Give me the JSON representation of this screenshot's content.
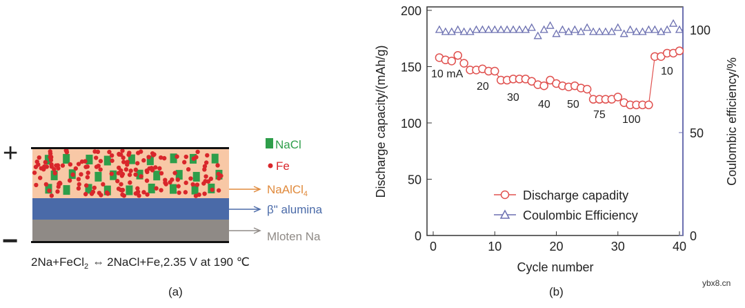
{
  "panel_a": {
    "label": "(a)",
    "plus_sign": "+",
    "minus_sign": "−",
    "legend": {
      "nacl": "NaCl",
      "fe": "Fe",
      "naalcl4": "NaAlCl",
      "naalcl4_sub": "4",
      "beta_alumina": "β\" alumina",
      "molten_na": "Mloten Na"
    },
    "equation_left": "2Na+FeCl",
    "equation_sub": "2",
    "equation_arrow": "⇔",
    "equation_right": "2NaCl+Fe,2.35 V at 190 ℃",
    "colors": {
      "cathode": "#f8c8a6",
      "nacl": "#2e9e4a",
      "fe": "#d9262b",
      "alumina": "#4a6aa8",
      "na": "#8f8a86",
      "naalcl4": "#e08a3c"
    }
  },
  "panel_b": {
    "label": "(b)"
  },
  "watermark": "ybx8.cn",
  "chart_data": {
    "type": "scatter",
    "xlabel": "Cycle number",
    "ylabel": "Discharge capacity/(mAh/g)",
    "y2label": "Coulombic efficiency/%",
    "xlim": [
      -1,
      41
    ],
    "ylim": [
      0,
      200
    ],
    "y2lim": [
      0,
      110
    ],
    "xticks": [
      "0",
      "10",
      "20",
      "30",
      "40"
    ],
    "yticks": [
      "0",
      "50",
      "100",
      "150",
      "200"
    ],
    "y2ticks": [
      "0",
      "50",
      "100"
    ],
    "legend_position": "bottom-center",
    "x": [
      1,
      2,
      3,
      4,
      5,
      6,
      7,
      8,
      9,
      10,
      11,
      12,
      13,
      14,
      15,
      16,
      17,
      18,
      19,
      20,
      21,
      22,
      23,
      24,
      25,
      26,
      27,
      28,
      29,
      30,
      31,
      32,
      33,
      34,
      35,
      36,
      37,
      38,
      39,
      40
    ],
    "series": [
      {
        "name": "Discharge capadity",
        "axis": "left",
        "marker": "circle",
        "color": "#e0504e",
        "values": [
          158,
          156,
          155,
          160,
          153,
          147,
          147,
          148,
          146,
          146,
          138,
          138,
          139,
          139,
          139,
          137,
          134,
          133,
          138,
          135,
          133,
          132,
          133,
          131,
          130,
          121,
          121,
          121,
          121,
          123,
          118,
          116,
          116,
          116,
          116,
          159,
          159,
          162,
          162,
          164
        ]
      },
      {
        "name": "Coulombic Efficiency",
        "axis": "right",
        "marker": "triangle",
        "color": "#6b6fb0",
        "values": [
          100,
          99,
          99,
          100,
          99,
          99,
          100,
          100,
          100,
          100,
          100,
          100,
          100,
          100,
          100,
          101,
          97,
          100,
          102,
          98,
          100,
          99,
          100,
          99,
          101,
          99,
          99,
          99,
          99,
          101,
          98,
          100,
          99,
          99,
          100,
          100,
          99,
          100,
          103,
          100
        ]
      }
    ],
    "annotations": [
      "10 mA",
      "20",
      "30",
      "40",
      "50",
      "75",
      "100",
      "10"
    ]
  }
}
